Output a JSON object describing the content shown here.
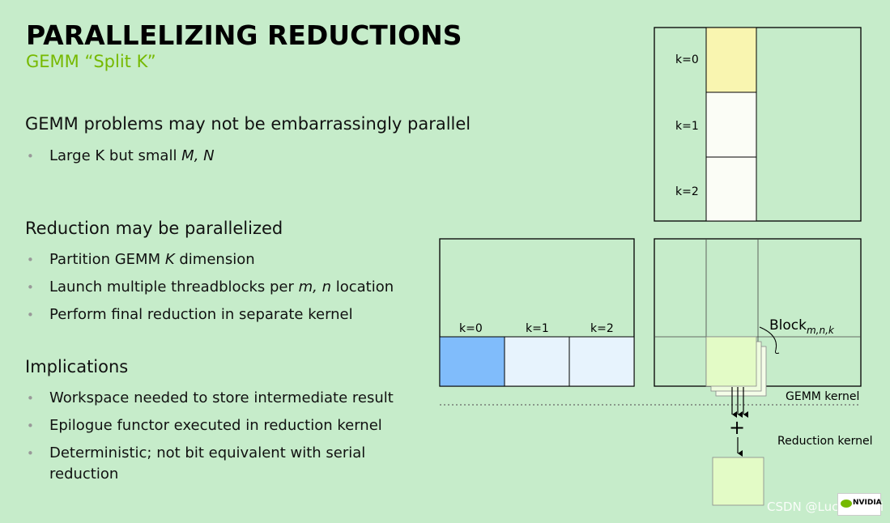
{
  "title": "PARALLELIZING REDUCTIONS",
  "subtitle": "GEMM “Split K”",
  "sections": [
    {
      "heading": "GEMM problems may not be embarrassingly parallel",
      "bullets": [
        {
          "pre": "Large K but small ",
          "em": "M, N",
          "post": ""
        }
      ]
    },
    {
      "heading": "Reduction may be parallelized",
      "bullets": [
        {
          "pre": "Partition GEMM ",
          "em": "K",
          "post": " dimension"
        },
        {
          "pre": "Launch multiple threadblocks per ",
          "em": "m, n",
          "post": " location"
        },
        {
          "pre": "Perform final reduction in separate kernel",
          "em": "",
          "post": ""
        }
      ]
    },
    {
      "heading": "Implications",
      "bullets": [
        {
          "pre": "Workspace needed to store intermediate result",
          "em": "",
          "post": ""
        },
        {
          "pre": "Epilogue functor executed in reduction kernel",
          "em": "",
          "post": ""
        },
        {
          "pre": "Deterministic; not bit equivalent with serial",
          "em": "",
          "post": "",
          "line2": "reduction"
        }
      ]
    }
  ],
  "diagram": {
    "top_k_labels": [
      "k=0",
      "k=1",
      "k=2"
    ],
    "left_k_labels": [
      "k=0",
      "k=1",
      "k=2"
    ],
    "block_label": "Block",
    "block_sub": "m,n,k",
    "gemm_kernel_label": "GEMM kernel",
    "plus": "+",
    "reduction_kernel_label": "Reduction kernel",
    "colors": {
      "yellow": "#f9f5b0",
      "white_cell": "#fbfdf6",
      "blue": "#80bcfb",
      "light_blue": "#e7f3fd",
      "green_tile": "#e3fbc6"
    }
  },
  "watermark": "CSDN @Luchang-Li",
  "logo_text": "NVIDIA"
}
